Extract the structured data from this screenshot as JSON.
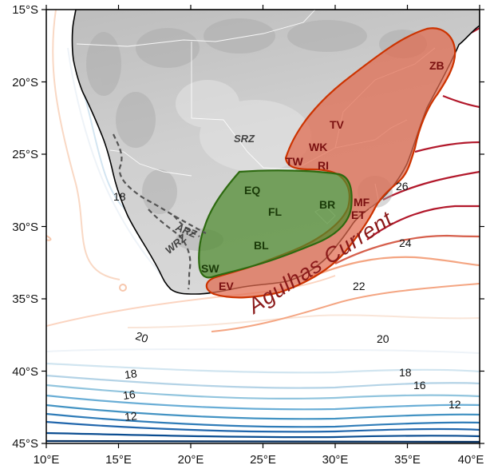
{
  "map": {
    "lat_axis": [
      "15°S",
      "20°S",
      "25°S",
      "30°S",
      "35°S",
      "40°S",
      "45°S"
    ],
    "lon_axis": [
      "10°E",
      "15°E",
      "20°E",
      "25°E",
      "30°E",
      "35°E",
      "40°E"
    ],
    "current_label": "Agulhas Current",
    "zones": {
      "srz": "SRZ",
      "arz": "ARZ",
      "wrz": "WRZ"
    },
    "regions": {
      "eq": "EQ",
      "fl": "FL",
      "br": "BR",
      "bl": "BL",
      "sw": "SW",
      "tv": "TV",
      "wk": "WK",
      "ri": "RI",
      "tw": "TW",
      "zb": "ZB",
      "mf": "MF",
      "et": "ET",
      "ev": "EV"
    },
    "sst_labels": {
      "t18_west": "18",
      "t26": "26",
      "t24": "24",
      "t22": "22",
      "t20_west": "20",
      "t20_east": "20",
      "t18_south": "18",
      "t18_east": "18",
      "t16_south": "16",
      "t16_east": "16",
      "t12_south": "12",
      "t12_east": "12"
    },
    "colors": {
      "green_region_fill": "#4d8a2e",
      "green_region_stroke": "#2d6a10",
      "red_region_fill": "#e06a4e",
      "red_region_stroke": "#cc3300",
      "warm_isotherm": "#b2182b",
      "cold_isotherm": "#2166ac",
      "land_base": "#c8c8c8"
    }
  }
}
